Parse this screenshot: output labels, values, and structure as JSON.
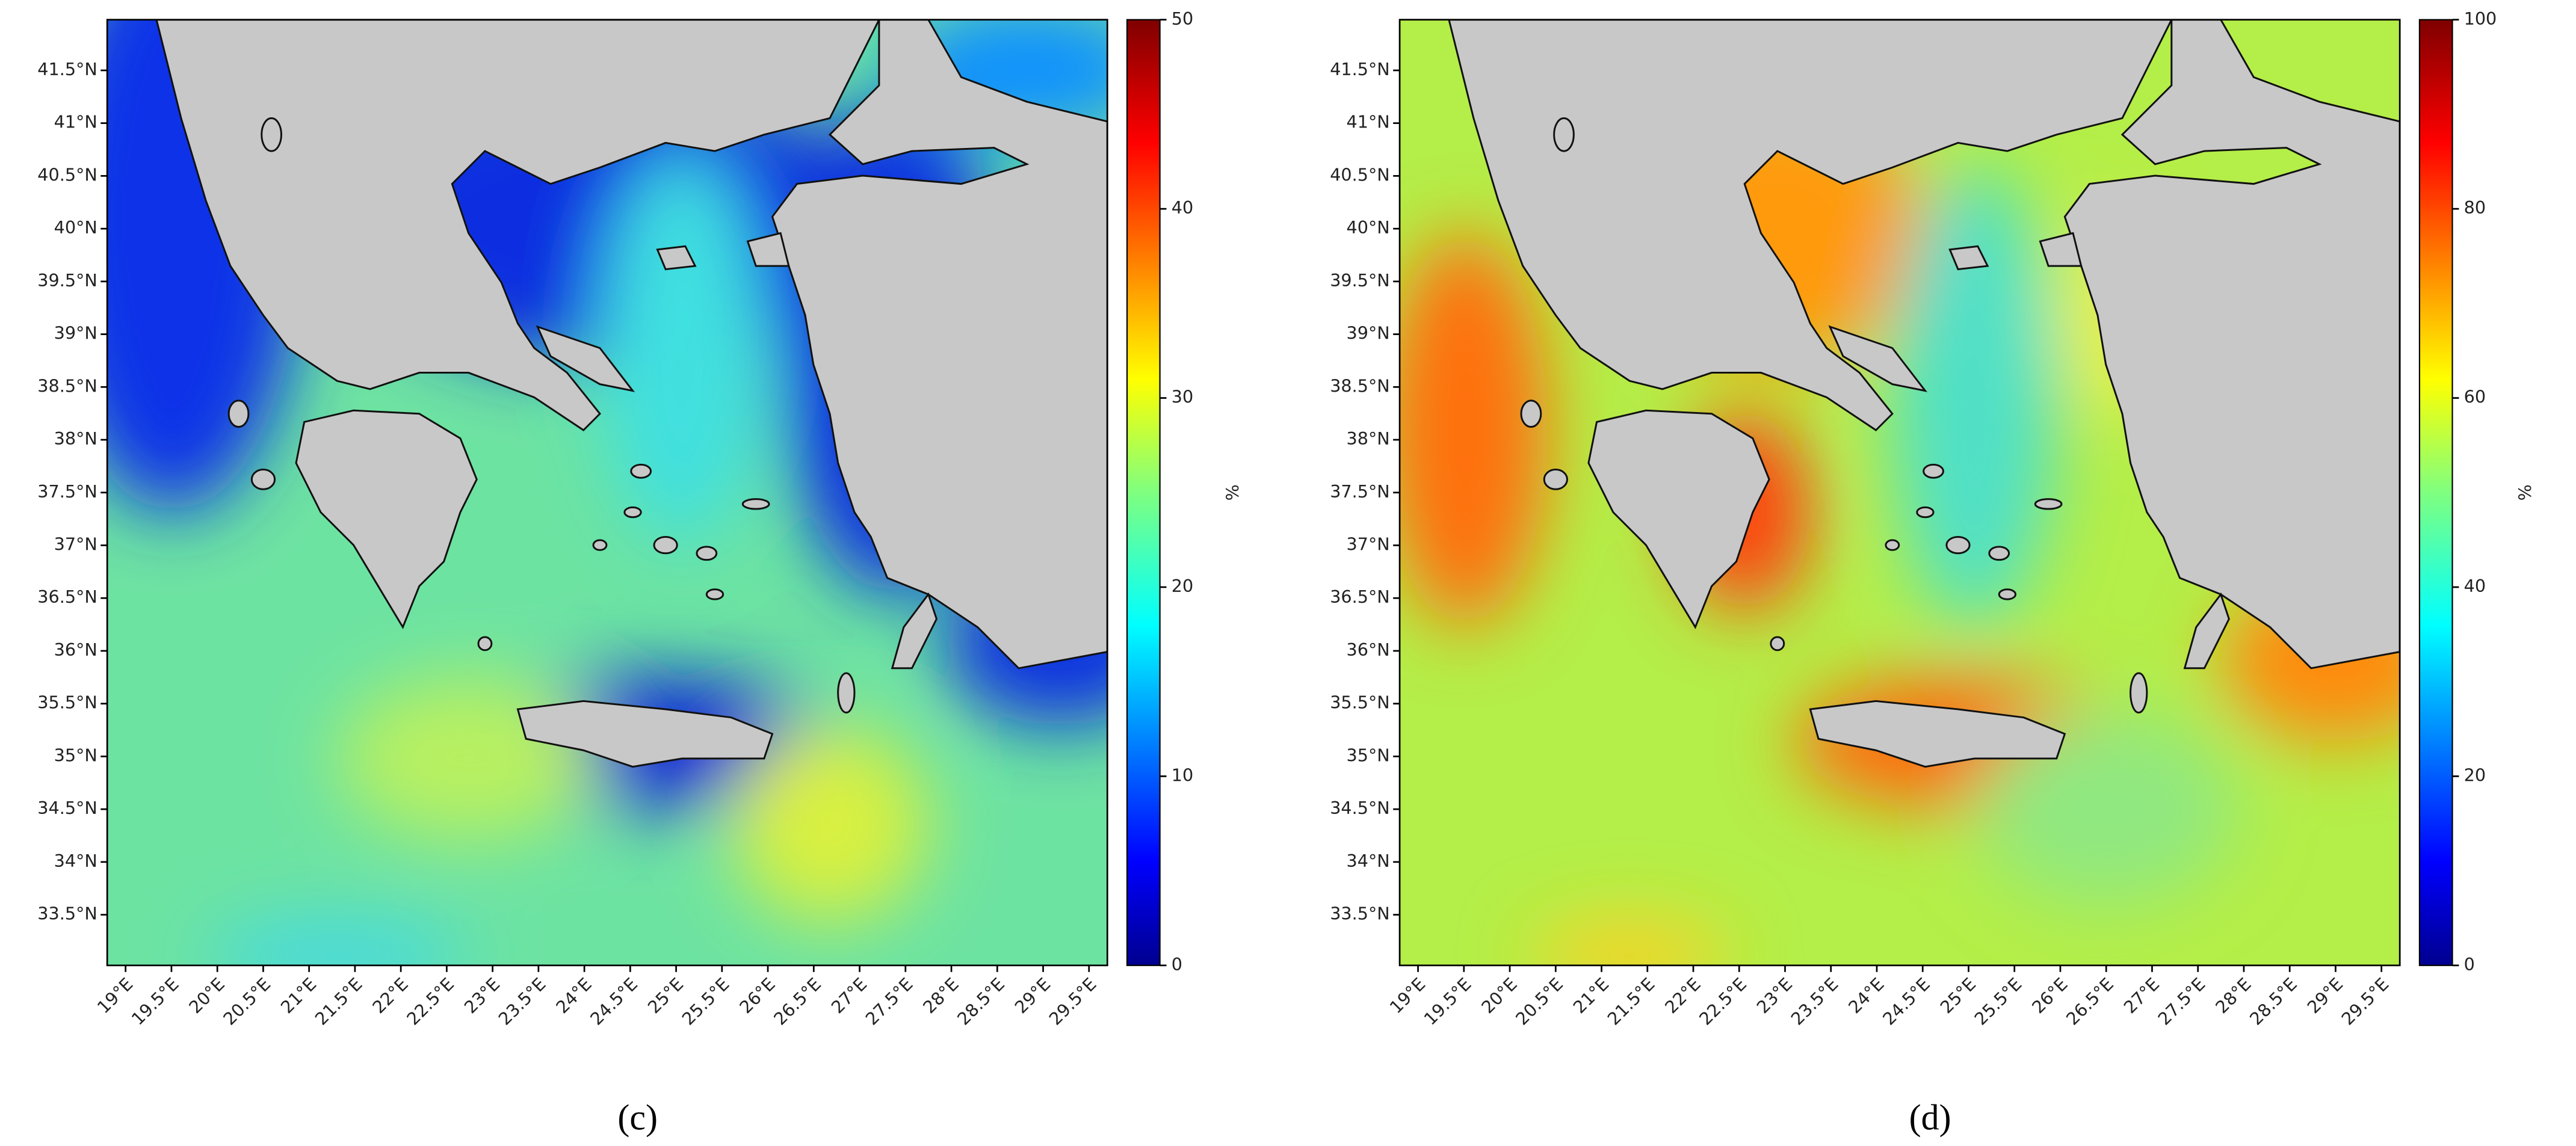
{
  "panels": [
    {
      "caption": "(c)",
      "xlim": [
        18.8,
        29.7
      ],
      "ylim": [
        33.02,
        41.98
      ],
      "xticks": [
        {
          "value": 19,
          "label": "19°E"
        },
        {
          "value": 19.5,
          "label": "19.5°E"
        },
        {
          "value": 20,
          "label": "20°E"
        },
        {
          "value": 20.5,
          "label": "20.5°E"
        },
        {
          "value": 21,
          "label": "21°E"
        },
        {
          "value": 21.5,
          "label": "21.5°E"
        },
        {
          "value": 22,
          "label": "22°E"
        },
        {
          "value": 22.5,
          "label": "22.5°E"
        },
        {
          "value": 23,
          "label": "23°E"
        },
        {
          "value": 23.5,
          "label": "23.5°E"
        },
        {
          "value": 24,
          "label": "24°E"
        },
        {
          "value": 24.5,
          "label": "24.5°E"
        },
        {
          "value": 25,
          "label": "25°E"
        },
        {
          "value": 25.5,
          "label": "25.5°E"
        },
        {
          "value": 26,
          "label": "26°E"
        },
        {
          "value": 26.5,
          "label": "26.5°E"
        },
        {
          "value": 27,
          "label": "27°E"
        },
        {
          "value": 27.5,
          "label": "27.5°E"
        },
        {
          "value": 28,
          "label": "28°E"
        },
        {
          "value": 28.5,
          "label": "28.5°E"
        },
        {
          "value": 29,
          "label": "29°E"
        },
        {
          "value": 29.5,
          "label": "29.5°E"
        }
      ],
      "yticks": [
        {
          "value": 33.5,
          "label": "33.5°N"
        },
        {
          "value": 34,
          "label": "34°N"
        },
        {
          "value": 34.5,
          "label": "34.5°N"
        },
        {
          "value": 35,
          "label": "35°N"
        },
        {
          "value": 35.5,
          "label": "35.5°N"
        },
        {
          "value": 36,
          "label": "36°N"
        },
        {
          "value": 36.5,
          "label": "36.5°N"
        },
        {
          "value": 37,
          "label": "37°N"
        },
        {
          "value": 37.5,
          "label": "37.5°N"
        },
        {
          "value": 38,
          "label": "38°N"
        },
        {
          "value": 38.5,
          "label": "38.5°N"
        },
        {
          "value": 39,
          "label": "39°N"
        },
        {
          "value": 39.5,
          "label": "39.5°N"
        },
        {
          "value": 40,
          "label": "40°N"
        },
        {
          "value": 40.5,
          "label": "40.5°N"
        },
        {
          "value": 41,
          "label": "41°N"
        },
        {
          "value": 41.5,
          "label": "41.5°N"
        }
      ],
      "colorbar": {
        "label": "%",
        "lim": [
          0,
          50
        ],
        "ticks": [
          0,
          10,
          20,
          30,
          40,
          50
        ]
      }
    },
    {
      "caption": "(d)",
      "xlim": [
        18.8,
        29.7
      ],
      "ylim": [
        33.02,
        41.98
      ],
      "xticks": [
        {
          "value": 19,
          "label": "19°E"
        },
        {
          "value": 19.5,
          "label": "19.5°E"
        },
        {
          "value": 20,
          "label": "20°E"
        },
        {
          "value": 20.5,
          "label": "20.5°E"
        },
        {
          "value": 21,
          "label": "21°E"
        },
        {
          "value": 21.5,
          "label": "21.5°E"
        },
        {
          "value": 22,
          "label": "22°E"
        },
        {
          "value": 22.5,
          "label": "22.5°E"
        },
        {
          "value": 23,
          "label": "23°E"
        },
        {
          "value": 23.5,
          "label": "23.5°E"
        },
        {
          "value": 24,
          "label": "24°E"
        },
        {
          "value": 24.5,
          "label": "24.5°E"
        },
        {
          "value": 25,
          "label": "25°E"
        },
        {
          "value": 25.5,
          "label": "25.5°E"
        },
        {
          "value": 26,
          "label": "26°E"
        },
        {
          "value": 26.5,
          "label": "26.5°E"
        },
        {
          "value": 27,
          "label": "27°E"
        },
        {
          "value": 27.5,
          "label": "27.5°E"
        },
        {
          "value": 28,
          "label": "28°E"
        },
        {
          "value": 28.5,
          "label": "28.5°E"
        },
        {
          "value": 29,
          "label": "29°E"
        },
        {
          "value": 29.5,
          "label": "29.5°E"
        }
      ],
      "yticks": [
        {
          "value": 33.5,
          "label": "33.5°N"
        },
        {
          "value": 34,
          "label": "34°N"
        },
        {
          "value": 34.5,
          "label": "34.5°N"
        },
        {
          "value": 35,
          "label": "35°N"
        },
        {
          "value": 35.5,
          "label": "35.5°N"
        },
        {
          "value": 36,
          "label": "36°N"
        },
        {
          "value": 36.5,
          "label": "36.5°N"
        },
        {
          "value": 37,
          "label": "37°N"
        },
        {
          "value": 37.5,
          "label": "37.5°N"
        },
        {
          "value": 38,
          "label": "38°N"
        },
        {
          "value": 38.5,
          "label": "38.5°N"
        },
        {
          "value": 39,
          "label": "39°N"
        },
        {
          "value": 39.5,
          "label": "39.5°N"
        },
        {
          "value": 40,
          "label": "40°N"
        },
        {
          "value": 40.5,
          "label": "40.5°N"
        },
        {
          "value": 41,
          "label": "41°N"
        },
        {
          "value": 41.5,
          "label": "41.5°N"
        }
      ],
      "colorbar": {
        "label": "%",
        "lim": [
          0,
          100
        ],
        "ticks": [
          0,
          20,
          40,
          60,
          80,
          100
        ]
      }
    }
  ]
}
